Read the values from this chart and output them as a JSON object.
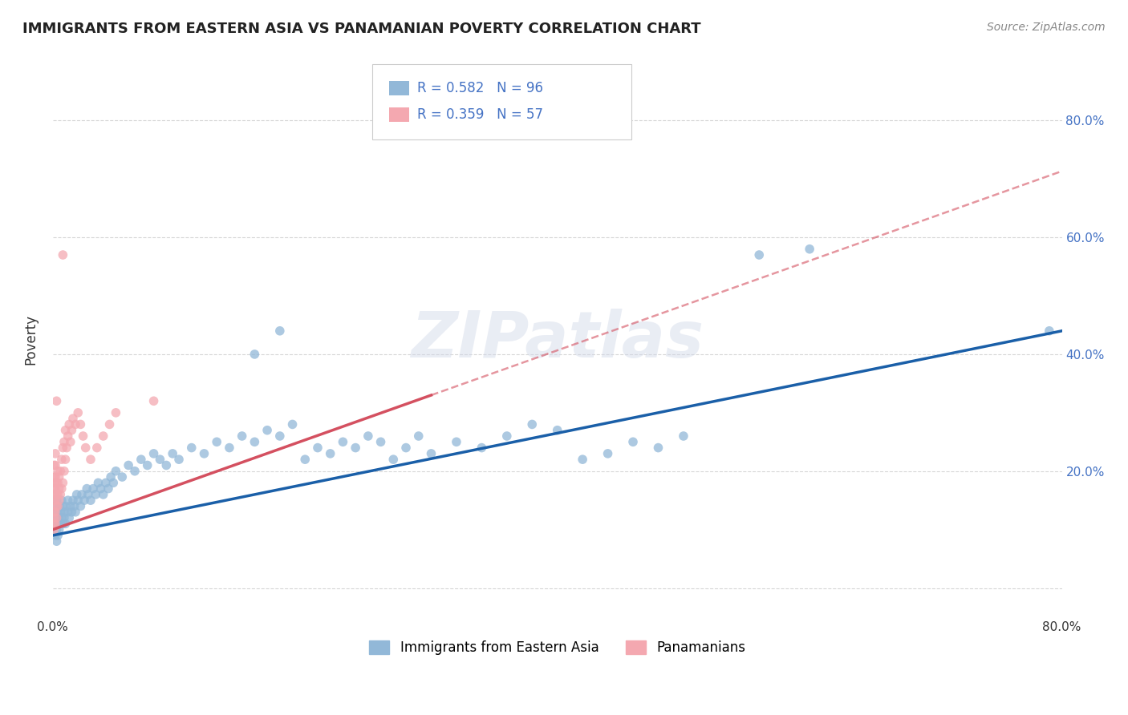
{
  "title": "IMMIGRANTS FROM EASTERN ASIA VS PANAMANIAN POVERTY CORRELATION CHART",
  "source_text": "Source: ZipAtlas.com",
  "ylabel": "Poverty",
  "xlim": [
    0.0,
    0.8
  ],
  "ylim": [
    -0.05,
    0.9
  ],
  "blue_color": "#92b8d8",
  "pink_color": "#f4a8b0",
  "blue_line_color": "#1a5fa8",
  "pink_line_color": "#d45060",
  "watermark_text": "ZIPatlas",
  "blue_scatter": [
    [
      0.001,
      0.1
    ],
    [
      0.001,
      0.12
    ],
    [
      0.001,
      0.13
    ],
    [
      0.002,
      0.09
    ],
    [
      0.002,
      0.11
    ],
    [
      0.002,
      0.14
    ],
    [
      0.003,
      0.1
    ],
    [
      0.003,
      0.12
    ],
    [
      0.003,
      0.15
    ],
    [
      0.003,
      0.08
    ],
    [
      0.004,
      0.11
    ],
    [
      0.004,
      0.13
    ],
    [
      0.004,
      0.09
    ],
    [
      0.005,
      0.12
    ],
    [
      0.005,
      0.14
    ],
    [
      0.005,
      0.1
    ],
    [
      0.006,
      0.11
    ],
    [
      0.006,
      0.13
    ],
    [
      0.007,
      0.12
    ],
    [
      0.007,
      0.15
    ],
    [
      0.008,
      0.11
    ],
    [
      0.008,
      0.14
    ],
    [
      0.009,
      0.13
    ],
    [
      0.009,
      0.12
    ],
    [
      0.01,
      0.14
    ],
    [
      0.01,
      0.11
    ],
    [
      0.012,
      0.13
    ],
    [
      0.012,
      0.15
    ],
    [
      0.013,
      0.12
    ],
    [
      0.014,
      0.14
    ],
    [
      0.015,
      0.13
    ],
    [
      0.016,
      0.15
    ],
    [
      0.017,
      0.14
    ],
    [
      0.018,
      0.13
    ],
    [
      0.019,
      0.16
    ],
    [
      0.02,
      0.15
    ],
    [
      0.022,
      0.14
    ],
    [
      0.023,
      0.16
    ],
    [
      0.025,
      0.15
    ],
    [
      0.027,
      0.17
    ],
    [
      0.028,
      0.16
    ],
    [
      0.03,
      0.15
    ],
    [
      0.032,
      0.17
    ],
    [
      0.034,
      0.16
    ],
    [
      0.036,
      0.18
    ],
    [
      0.038,
      0.17
    ],
    [
      0.04,
      0.16
    ],
    [
      0.042,
      0.18
    ],
    [
      0.044,
      0.17
    ],
    [
      0.046,
      0.19
    ],
    [
      0.048,
      0.18
    ],
    [
      0.05,
      0.2
    ],
    [
      0.055,
      0.19
    ],
    [
      0.06,
      0.21
    ],
    [
      0.065,
      0.2
    ],
    [
      0.07,
      0.22
    ],
    [
      0.075,
      0.21
    ],
    [
      0.08,
      0.23
    ],
    [
      0.085,
      0.22
    ],
    [
      0.09,
      0.21
    ],
    [
      0.095,
      0.23
    ],
    [
      0.1,
      0.22
    ],
    [
      0.11,
      0.24
    ],
    [
      0.12,
      0.23
    ],
    [
      0.13,
      0.25
    ],
    [
      0.14,
      0.24
    ],
    [
      0.15,
      0.26
    ],
    [
      0.16,
      0.25
    ],
    [
      0.17,
      0.27
    ],
    [
      0.18,
      0.26
    ],
    [
      0.19,
      0.28
    ],
    [
      0.2,
      0.22
    ],
    [
      0.21,
      0.24
    ],
    [
      0.22,
      0.23
    ],
    [
      0.23,
      0.25
    ],
    [
      0.24,
      0.24
    ],
    [
      0.25,
      0.26
    ],
    [
      0.26,
      0.25
    ],
    [
      0.27,
      0.22
    ],
    [
      0.28,
      0.24
    ],
    [
      0.29,
      0.26
    ],
    [
      0.3,
      0.23
    ],
    [
      0.32,
      0.25
    ],
    [
      0.34,
      0.24
    ],
    [
      0.36,
      0.26
    ],
    [
      0.38,
      0.28
    ],
    [
      0.4,
      0.27
    ],
    [
      0.42,
      0.22
    ],
    [
      0.44,
      0.23
    ],
    [
      0.46,
      0.25
    ],
    [
      0.48,
      0.24
    ],
    [
      0.5,
      0.26
    ],
    [
      0.56,
      0.57
    ],
    [
      0.6,
      0.58
    ],
    [
      0.16,
      0.4
    ],
    [
      0.18,
      0.44
    ],
    [
      0.79,
      0.44
    ]
  ],
  "pink_scatter": [
    [
      0.001,
      0.1
    ],
    [
      0.001,
      0.11
    ],
    [
      0.001,
      0.12
    ],
    [
      0.001,
      0.13
    ],
    [
      0.001,
      0.15
    ],
    [
      0.001,
      0.16
    ],
    [
      0.001,
      0.17
    ],
    [
      0.001,
      0.18
    ],
    [
      0.001,
      0.19
    ],
    [
      0.001,
      0.21
    ],
    [
      0.002,
      0.11
    ],
    [
      0.002,
      0.13
    ],
    [
      0.002,
      0.15
    ],
    [
      0.002,
      0.17
    ],
    [
      0.002,
      0.19
    ],
    [
      0.002,
      0.21
    ],
    [
      0.002,
      0.23
    ],
    [
      0.003,
      0.12
    ],
    [
      0.003,
      0.14
    ],
    [
      0.003,
      0.16
    ],
    [
      0.003,
      0.18
    ],
    [
      0.003,
      0.32
    ],
    [
      0.004,
      0.14
    ],
    [
      0.004,
      0.16
    ],
    [
      0.004,
      0.18
    ],
    [
      0.004,
      0.2
    ],
    [
      0.005,
      0.15
    ],
    [
      0.005,
      0.17
    ],
    [
      0.005,
      0.19
    ],
    [
      0.006,
      0.16
    ],
    [
      0.006,
      0.2
    ],
    [
      0.007,
      0.17
    ],
    [
      0.007,
      0.22
    ],
    [
      0.008,
      0.18
    ],
    [
      0.008,
      0.24
    ],
    [
      0.008,
      0.57
    ],
    [
      0.009,
      0.2
    ],
    [
      0.009,
      0.25
    ],
    [
      0.01,
      0.22
    ],
    [
      0.01,
      0.27
    ],
    [
      0.011,
      0.24
    ],
    [
      0.012,
      0.26
    ],
    [
      0.013,
      0.28
    ],
    [
      0.014,
      0.25
    ],
    [
      0.015,
      0.27
    ],
    [
      0.016,
      0.29
    ],
    [
      0.018,
      0.28
    ],
    [
      0.02,
      0.3
    ],
    [
      0.022,
      0.28
    ],
    [
      0.024,
      0.26
    ],
    [
      0.026,
      0.24
    ],
    [
      0.03,
      0.22
    ],
    [
      0.035,
      0.24
    ],
    [
      0.04,
      0.26
    ],
    [
      0.045,
      0.28
    ],
    [
      0.05,
      0.3
    ],
    [
      0.08,
      0.32
    ]
  ],
  "blue_line": [
    [
      0.0,
      0.09
    ],
    [
      0.8,
      0.44
    ]
  ],
  "pink_line": [
    [
      0.0,
      0.1
    ],
    [
      0.3,
      0.33
    ]
  ]
}
